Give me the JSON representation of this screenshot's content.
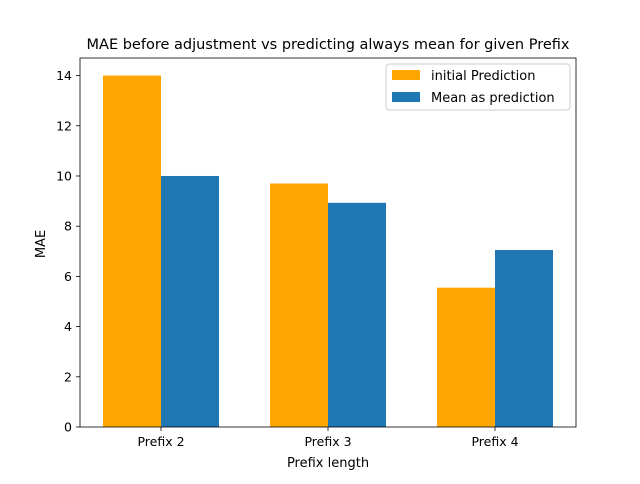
{
  "chart_data": {
    "type": "bar",
    "title": "MAE before adjustment vs predicting always mean for given Prefix",
    "xlabel": "Prefix length",
    "ylabel": "MAE",
    "categories": [
      "Prefix 2",
      "Prefix 3",
      "Prefix 4"
    ],
    "ylim": [
      0,
      14.7
    ],
    "yticks": [
      "0",
      "2",
      "4",
      "6",
      "8",
      "10",
      "12",
      "14"
    ],
    "series": [
      {
        "name": "initial Prediction",
        "color": "#ffa500",
        "values": [
          14.0,
          9.7,
          5.55
        ]
      },
      {
        "name": "Mean as prediction",
        "color": "#1f77b4",
        "values": [
          10.0,
          8.93,
          7.05
        ]
      }
    ],
    "legend_position": "top-right",
    "grid": false
  }
}
